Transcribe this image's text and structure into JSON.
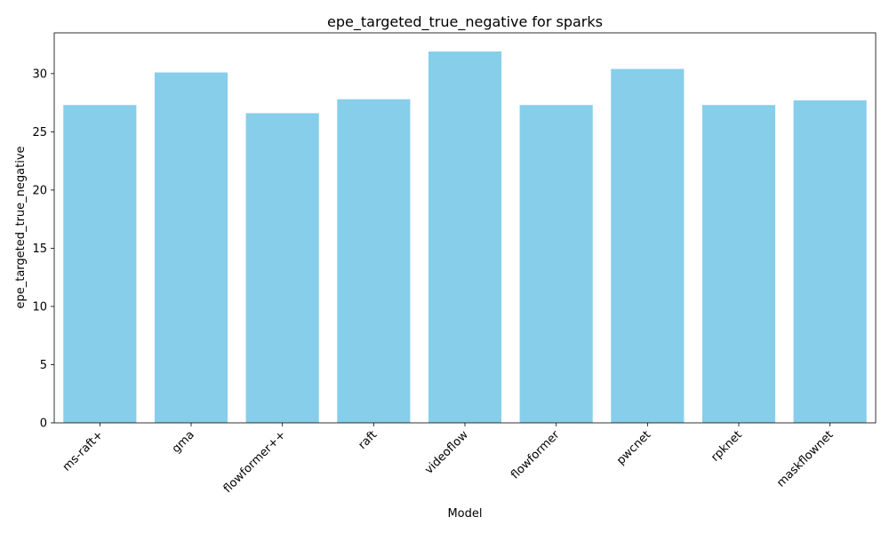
{
  "chart_data": {
    "type": "bar",
    "title": "epe_targeted_true_negative for sparks",
    "xlabel": "Model",
    "ylabel": "epe_targeted_true_negative",
    "categories": [
      "ms-raft+",
      "gma",
      "flowformer++",
      "raft",
      "videoflow",
      "flowformer",
      "pwcnet",
      "rpknet",
      "maskflownet"
    ],
    "values": [
      27.3,
      30.1,
      26.6,
      27.8,
      31.9,
      27.3,
      30.4,
      27.3,
      27.7
    ],
    "ylim": [
      0,
      33.5
    ],
    "yticks": [
      0,
      5,
      10,
      15,
      20,
      25,
      30
    ],
    "bar_color": "#87CEEB",
    "grid": false,
    "legend": "none"
  }
}
